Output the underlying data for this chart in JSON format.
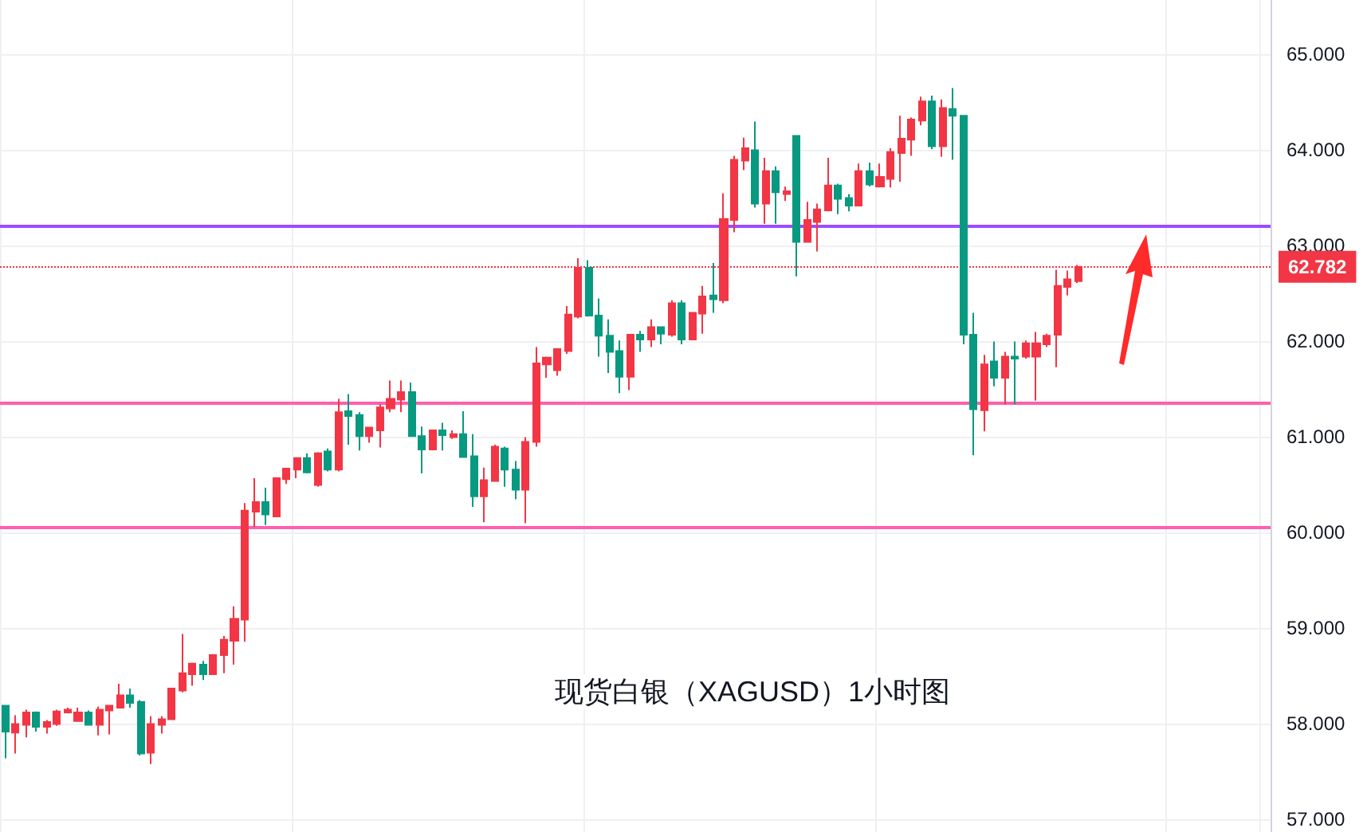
{
  "chart_data": {
    "type": "candlestick",
    "annotations": [
      "现货白银（XAGUSD）1小时图"
    ],
    "categories": [
      null,
      null,
      null,
      null,
      null,
      null,
      null,
      null,
      null,
      null,
      null,
      null,
      null,
      null,
      null,
      null,
      null,
      null,
      null,
      null,
      null,
      null,
      null,
      null,
      null,
      null,
      null,
      null,
      null,
      null,
      null,
      null,
      null,
      null,
      null,
      null,
      null,
      null,
      null,
      null,
      null,
      null,
      null,
      null,
      null,
      null,
      null,
      null,
      null,
      null,
      null,
      null,
      null,
      null,
      null,
      null,
      null,
      null,
      null,
      null,
      null,
      null,
      null,
      null,
      null,
      null,
      null,
      null,
      null,
      null,
      null,
      null,
      null,
      null,
      null,
      null,
      null,
      null,
      null,
      null,
      null,
      null,
      null,
      null,
      null,
      null,
      null,
      null,
      null,
      null,
      null,
      null,
      null,
      null,
      null,
      null,
      null,
      null,
      null,
      null,
      null,
      null,
      null,
      null,
      null,
      null,
      null,
      null,
      null,
      null,
      null,
      null,
      null,
      null,
      null,
      null,
      null,
      null,
      null,
      null,
      null,
      null
    ],
    "ohlc": [
      [
        58.19,
        58.19,
        57.64,
        57.92
      ],
      [
        57.91,
        58.09,
        57.69,
        58.0
      ],
      [
        57.99,
        58.15,
        57.86,
        58.12
      ],
      [
        58.12,
        58.13,
        57.92,
        57.97
      ],
      [
        57.97,
        58.04,
        57.9,
        58.02
      ],
      [
        58.0,
        58.15,
        57.98,
        58.13
      ],
      [
        58.12,
        58.17,
        58.11,
        58.15
      ],
      [
        58.03,
        58.17,
        58.03,
        58.12
      ],
      [
        58.12,
        58.14,
        57.99,
        57.99
      ],
      [
        57.99,
        58.18,
        57.88,
        58.15
      ],
      [
        58.14,
        58.19,
        57.89,
        58.19
      ],
      [
        58.17,
        58.42,
        58.17,
        58.3
      ],
      [
        58.3,
        58.37,
        58.17,
        58.22
      ],
      [
        58.23,
        58.25,
        57.67,
        57.69
      ],
      [
        57.7,
        58.08,
        57.58,
        58.0
      ],
      [
        57.99,
        58.08,
        57.9,
        58.05
      ],
      [
        58.05,
        58.37,
        58.05,
        58.37
      ],
      [
        58.35,
        58.94,
        58.33,
        58.53
      ],
      [
        58.52,
        58.64,
        58.4,
        58.63
      ],
      [
        58.62,
        58.66,
        58.46,
        58.52
      ],
      [
        58.52,
        58.73,
        58.52,
        58.72
      ],
      [
        58.72,
        58.92,
        58.53,
        58.88
      ],
      [
        58.87,
        59.23,
        58.62,
        59.1
      ],
      [
        59.09,
        60.31,
        58.86,
        60.23
      ],
      [
        60.22,
        60.57,
        60.06,
        60.32
      ],
      [
        60.32,
        60.47,
        60.08,
        60.19
      ],
      [
        60.17,
        60.57,
        60.17,
        60.57
      ],
      [
        60.56,
        60.67,
        60.51,
        60.67
      ],
      [
        60.66,
        60.78,
        60.57,
        60.78
      ],
      [
        60.78,
        60.83,
        60.62,
        60.63
      ],
      [
        60.5,
        60.84,
        60.48,
        60.83
      ],
      [
        60.85,
        60.88,
        60.64,
        60.66
      ],
      [
        60.66,
        61.4,
        60.64,
        61.26
      ],
      [
        61.27,
        61.45,
        60.92,
        61.22
      ],
      [
        61.23,
        61.26,
        60.86,
        61.01
      ],
      [
        61.01,
        61.1,
        60.94,
        61.1
      ],
      [
        61.07,
        61.34,
        60.89,
        61.31
      ],
      [
        61.3,
        61.59,
        61.26,
        61.4
      ],
      [
        61.39,
        61.59,
        61.26,
        61.47
      ],
      [
        61.47,
        61.57,
        61.01,
        61.01
      ],
      [
        61.01,
        61.11,
        60.62,
        60.87
      ],
      [
        60.87,
        61.07,
        60.87,
        61.07
      ],
      [
        61.07,
        61.15,
        60.86,
        61.02
      ],
      [
        61.0,
        61.07,
        60.98,
        61.03
      ],
      [
        61.03,
        61.27,
        60.79,
        60.79
      ],
      [
        60.8,
        61.03,
        60.27,
        60.38
      ],
      [
        60.38,
        60.68,
        60.11,
        60.55
      ],
      [
        60.54,
        60.92,
        60.54,
        60.9
      ],
      [
        60.88,
        60.9,
        60.48,
        60.66
      ],
      [
        60.66,
        60.75,
        60.35,
        60.45
      ],
      [
        60.45,
        61.0,
        60.1,
        60.95
      ],
      [
        60.95,
        61.94,
        60.9,
        61.77
      ],
      [
        61.76,
        61.84,
        61.62,
        61.83
      ],
      [
        61.7,
        61.92,
        61.64,
        61.92
      ],
      [
        61.9,
        62.37,
        61.87,
        62.28
      ],
      [
        62.26,
        62.87,
        62.24,
        62.77
      ],
      [
        62.77,
        62.85,
        62.26,
        62.27
      ],
      [
        62.27,
        62.45,
        61.84,
        62.06
      ],
      [
        62.06,
        62.23,
        61.67,
        61.89
      ],
      [
        61.9,
        62.01,
        61.46,
        61.63
      ],
      [
        61.63,
        62.07,
        61.49,
        62.07
      ],
      [
        62.07,
        62.11,
        61.89,
        62.02
      ],
      [
        62.02,
        62.23,
        61.94,
        62.15
      ],
      [
        62.15,
        62.15,
        61.97,
        62.08
      ],
      [
        62.07,
        62.43,
        62.05,
        62.4
      ],
      [
        62.4,
        62.43,
        61.97,
        62.02
      ],
      [
        62.02,
        62.3,
        62.02,
        62.3
      ],
      [
        62.29,
        62.58,
        62.08,
        62.47
      ],
      [
        62.48,
        62.82,
        62.3,
        62.44
      ],
      [
        62.43,
        63.55,
        62.4,
        63.28
      ],
      [
        63.27,
        63.94,
        63.14,
        63.9
      ],
      [
        63.89,
        64.13,
        63.79,
        64.02
      ],
      [
        64.0,
        64.3,
        63.4,
        63.44
      ],
      [
        63.44,
        63.92,
        63.23,
        63.78
      ],
      [
        63.78,
        63.83,
        63.23,
        63.56
      ],
      [
        63.54,
        63.62,
        63.47,
        63.57
      ],
      [
        64.15,
        64.15,
        62.68,
        63.04
      ],
      [
        63.04,
        63.46,
        63.04,
        63.27
      ],
      [
        63.25,
        63.44,
        62.94,
        63.38
      ],
      [
        63.37,
        63.92,
        63.36,
        63.63
      ],
      [
        63.63,
        63.65,
        63.33,
        63.49
      ],
      [
        63.5,
        63.54,
        63.36,
        63.42
      ],
      [
        63.42,
        63.86,
        63.42,
        63.78
      ],
      [
        63.78,
        63.87,
        63.62,
        63.64
      ],
      [
        63.62,
        63.86,
        63.61,
        63.72
      ],
      [
        63.7,
        64.02,
        63.61,
        63.98
      ],
      [
        63.97,
        64.36,
        63.67,
        64.12
      ],
      [
        64.11,
        64.34,
        63.94,
        64.32
      ],
      [
        64.31,
        64.56,
        64.26,
        64.51
      ],
      [
        64.51,
        64.57,
        64.01,
        64.04
      ],
      [
        64.04,
        64.53,
        63.93,
        64.44
      ],
      [
        64.43,
        64.65,
        63.9,
        64.36
      ],
      [
        64.36,
        64.36,
        61.97,
        62.07
      ],
      [
        62.07,
        62.3,
        60.81,
        61.29
      ],
      [
        61.28,
        61.86,
        61.06,
        61.76
      ],
      [
        61.79,
        62.0,
        61.53,
        61.62
      ],
      [
        61.62,
        61.89,
        61.34,
        61.84
      ],
      [
        61.84,
        62.0,
        61.34,
        61.82
      ],
      [
        61.84,
        62.01,
        61.82,
        61.98
      ],
      [
        61.84,
        62.1,
        61.38,
        61.98
      ],
      [
        61.97,
        62.08,
        61.94,
        62.06
      ],
      [
        62.07,
        62.75,
        61.73,
        62.58
      ],
      [
        62.57,
        62.74,
        62.48,
        62.65
      ],
      [
        62.63,
        62.8,
        62.61,
        62.78
      ],
      null,
      null,
      null,
      null,
      null,
      null,
      null,
      null,
      null,
      null,
      null,
      null,
      null,
      null,
      null,
      null,
      null,
      null
    ],
    "colors": [
      "#089981",
      "#f23645",
      "#f23645",
      "#089981",
      "#f23645",
      "#f23645",
      "#f23645",
      "#f23645",
      "#089981",
      "#f23645",
      "#f23645",
      "#f23645",
      "#089981",
      "#089981",
      "#f23645",
      "#f23645",
      "#f23645",
      "#f23645",
      "#f23645",
      "#089981",
      "#f23645",
      "#f23645",
      "#f23645",
      "#f23645",
      "#f23645",
      "#089981",
      "#f23645",
      "#f23645",
      "#f23645",
      "#089981",
      "#f23645",
      "#089981",
      "#f23645",
      "#089981",
      "#089981",
      "#f23645",
      "#f23645",
      "#f23645",
      "#f23645",
      "#089981",
      "#089981",
      "#f23645",
      "#089981",
      "#f23645",
      "#089981",
      "#089981",
      "#f23645",
      "#f23645",
      "#089981",
      "#089981",
      "#f23645",
      "#f23645",
      "#f23645",
      "#f23645",
      "#f23645",
      "#f23645",
      "#089981",
      "#089981",
      "#089981",
      "#089981",
      "#f23645",
      "#089981",
      "#f23645",
      "#089981",
      "#f23645",
      "#089981",
      "#f23645",
      "#f23645",
      "#089981",
      "#f23645",
      "#f23645",
      "#f23645",
      "#089981",
      "#f23645",
      "#089981",
      "#f23645",
      "#089981",
      "#f23645",
      "#f23645",
      "#f23645",
      "#089981",
      "#089981",
      "#f23645",
      "#089981",
      "#f23645",
      "#f23645",
      "#f23645",
      "#f23645",
      "#f23645",
      "#089981",
      "#f23645",
      "#089981",
      "#089981",
      "#089981",
      "#f23645",
      "#089981",
      "#f23645",
      "#089981",
      "#f23645",
      "#f23645",
      "#f23645",
      "#f23645",
      "#f23645",
      "#f23645",
      null,
      null,
      null,
      null,
      null,
      null,
      null,
      null,
      null,
      null,
      null,
      null,
      null,
      null,
      null,
      null,
      null,
      null
    ],
    "ylim": [
      56.87,
      65.57
    ],
    "yticks": [
      {
        "value": 57,
        "label": "57.000"
      },
      {
        "value": 58,
        "label": "58.000"
      },
      {
        "value": 59,
        "label": "59.000"
      },
      {
        "value": 60,
        "label": "60.000"
      },
      {
        "value": 61,
        "label": "61.000"
      },
      {
        "value": 62,
        "label": "62.000"
      },
      {
        "value": 63,
        "label": "63.000"
      },
      {
        "value": 64,
        "label": "64.000"
      },
      {
        "value": 65,
        "label": "65.000"
      }
    ],
    "grid": true,
    "ref_lines": [
      {
        "axis": "y",
        "value": 63.2,
        "color": "#9c4dff",
        "line_style": "solid"
      },
      {
        "axis": "y",
        "value": 61.35,
        "color": "#ff5fb0",
        "line_style": "solid"
      },
      {
        "axis": "y",
        "value": 60.05,
        "color": "#ff5fb0",
        "line_style": "solid"
      },
      {
        "axis": "y",
        "value": 62.782,
        "label": "62.782",
        "color": "#f23645",
        "line_style": "dotted"
      }
    ]
  }
}
